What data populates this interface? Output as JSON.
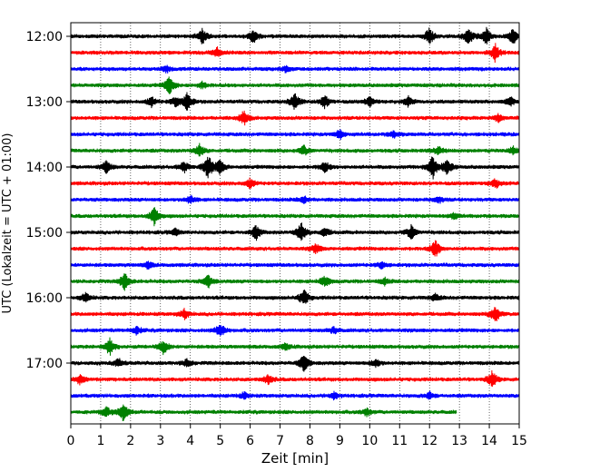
{
  "chart_data": {
    "type": "line",
    "title": "",
    "xlabel": "Zeit  [min]",
    "ylabel": "UTC (Lokalzeit = UTC + 01:00)",
    "xlim": [
      0,
      15
    ],
    "x_ticks": [
      0,
      1,
      2,
      3,
      4,
      5,
      6,
      7,
      8,
      9,
      10,
      11,
      12,
      13,
      14,
      15
    ],
    "y_ticks": [
      "12:00",
      "13:00",
      "14:00",
      "15:00",
      "16:00",
      "17:00"
    ],
    "grid": "vertical dotted",
    "row_interval_minutes": 15,
    "color_cycle": [
      "#000000",
      "#ff0000",
      "#0000ff",
      "#008000"
    ],
    "series": [
      {
        "start": "12:00",
        "end_min": 15,
        "events": [
          [
            4.4,
            0.45
          ],
          [
            6.1,
            0.45
          ],
          [
            12.0,
            0.5
          ],
          [
            13.3,
            0.55
          ],
          [
            13.9,
            0.5
          ],
          [
            14.8,
            0.5
          ]
        ]
      },
      {
        "start": "12:15",
        "end_min": 15,
        "events": [
          [
            4.9,
            0.3
          ],
          [
            14.2,
            0.55
          ]
        ]
      },
      {
        "start": "12:30",
        "end_min": 15,
        "events": [
          [
            3.2,
            0.2
          ],
          [
            7.2,
            0.2
          ]
        ]
      },
      {
        "start": "12:45",
        "end_min": 15,
        "events": [
          [
            3.3,
            0.6
          ],
          [
            4.4,
            0.2
          ]
        ]
      },
      {
        "start": "13:00",
        "end_min": 15,
        "events": [
          [
            2.7,
            0.3
          ],
          [
            3.5,
            0.3
          ],
          [
            3.9,
            0.6
          ],
          [
            7.5,
            0.55
          ],
          [
            8.5,
            0.4
          ],
          [
            10.0,
            0.3
          ],
          [
            11.3,
            0.3
          ],
          [
            14.7,
            0.3
          ]
        ]
      },
      {
        "start": "13:15",
        "end_min": 15,
        "events": [
          [
            5.8,
            0.45
          ],
          [
            14.3,
            0.25
          ]
        ]
      },
      {
        "start": "13:30",
        "end_min": 15,
        "events": [
          [
            9.0,
            0.3
          ],
          [
            10.8,
            0.2
          ]
        ]
      },
      {
        "start": "13:45",
        "end_min": 15,
        "events": [
          [
            4.3,
            0.4
          ],
          [
            7.8,
            0.3
          ],
          [
            12.3,
            0.3
          ],
          [
            14.8,
            0.25
          ]
        ]
      },
      {
        "start": "14:00",
        "end_min": 15,
        "events": [
          [
            1.2,
            0.4
          ],
          [
            3.8,
            0.35
          ],
          [
            4.6,
            0.75
          ],
          [
            5.0,
            0.45
          ],
          [
            8.5,
            0.35
          ],
          [
            12.1,
            0.8
          ],
          [
            12.6,
            0.5
          ]
        ]
      },
      {
        "start": "14:15",
        "end_min": 15,
        "events": [
          [
            6.0,
            0.3
          ],
          [
            14.2,
            0.3
          ]
        ]
      },
      {
        "start": "14:30",
        "end_min": 15,
        "events": [
          [
            4.0,
            0.25
          ],
          [
            7.8,
            0.2
          ],
          [
            12.3,
            0.2
          ]
        ]
      },
      {
        "start": "14:45",
        "end_min": 15,
        "events": [
          [
            2.8,
            0.6
          ],
          [
            12.8,
            0.2
          ]
        ]
      },
      {
        "start": "15:00",
        "end_min": 15,
        "events": [
          [
            3.5,
            0.2
          ],
          [
            6.2,
            0.45
          ],
          [
            7.7,
            0.65
          ],
          [
            8.5,
            0.3
          ],
          [
            11.4,
            0.45
          ]
        ]
      },
      {
        "start": "15:15",
        "end_min": 15,
        "events": [
          [
            8.2,
            0.3
          ],
          [
            12.2,
            0.55
          ]
        ]
      },
      {
        "start": "15:30",
        "end_min": 15,
        "events": [
          [
            2.6,
            0.2
          ],
          [
            10.4,
            0.2
          ]
        ]
      },
      {
        "start": "15:45",
        "end_min": 15,
        "events": [
          [
            1.8,
            0.55
          ],
          [
            4.6,
            0.4
          ],
          [
            8.5,
            0.35
          ],
          [
            10.5,
            0.2
          ]
        ]
      },
      {
        "start": "16:00",
        "end_min": 15,
        "events": [
          [
            0.5,
            0.3
          ],
          [
            7.8,
            0.55
          ],
          [
            12.2,
            0.2
          ]
        ]
      },
      {
        "start": "16:15",
        "end_min": 15,
        "events": [
          [
            3.8,
            0.3
          ],
          [
            14.2,
            0.55
          ]
        ]
      },
      {
        "start": "16:30",
        "end_min": 15,
        "events": [
          [
            2.2,
            0.25
          ],
          [
            5.0,
            0.45
          ],
          [
            8.8,
            0.2
          ]
        ]
      },
      {
        "start": "16:45",
        "end_min": 15,
        "events": [
          [
            1.3,
            0.55
          ],
          [
            3.1,
            0.45
          ],
          [
            7.2,
            0.2
          ]
        ]
      },
      {
        "start": "17:00",
        "end_min": 15,
        "events": [
          [
            1.6,
            0.25
          ],
          [
            3.9,
            0.25
          ],
          [
            7.8,
            0.55
          ],
          [
            10.2,
            0.25
          ]
        ]
      },
      {
        "start": "17:15",
        "end_min": 15,
        "events": [
          [
            0.3,
            0.3
          ],
          [
            6.6,
            0.3
          ],
          [
            14.1,
            0.5
          ]
        ]
      },
      {
        "start": "17:30",
        "end_min": 15,
        "events": [
          [
            5.8,
            0.2
          ],
          [
            8.8,
            0.2
          ],
          [
            12.0,
            0.2
          ]
        ]
      },
      {
        "start": "17:45",
        "end_min": 12.9,
        "events": [
          [
            1.2,
            0.3
          ],
          [
            1.75,
            0.6
          ],
          [
            9.9,
            0.25
          ]
        ]
      }
    ]
  }
}
